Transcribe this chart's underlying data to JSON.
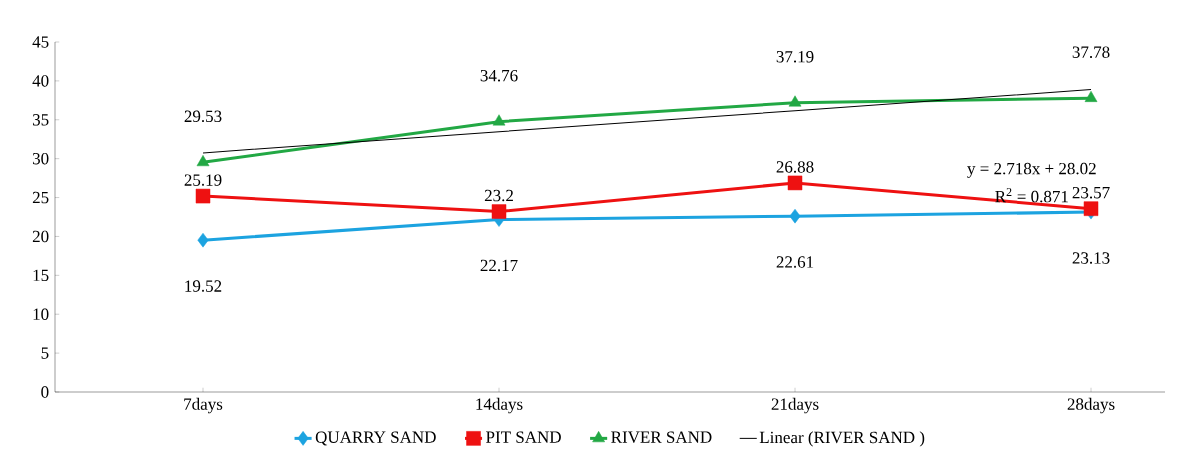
{
  "chart_data": {
    "type": "line",
    "categories": [
      "7days",
      "14days",
      "21days",
      "28days"
    ],
    "series": [
      {
        "name": "QUARRY SAND",
        "color": "#1ca3e0",
        "marker": "diamond",
        "values": [
          19.52,
          22.17,
          22.61,
          23.13
        ],
        "value_labels": [
          "19.52",
          "22.17",
          "22.61",
          "23.13"
        ]
      },
      {
        "name": "PIT SAND",
        "color": "#ee1111",
        "marker": "square",
        "values": [
          25.19,
          23.2,
          26.88,
          23.57
        ],
        "value_labels": [
          "25.19",
          "23.2",
          "26.88",
          "23.57"
        ]
      },
      {
        "name": "RIVER SAND",
        "color": "#22a844",
        "marker": "triangle",
        "values": [
          29.53,
          34.76,
          37.19,
          37.78
        ],
        "value_labels": [
          "29.53",
          "34.76",
          "37.19",
          "37.78"
        ]
      },
      {
        "name": "Linear (RIVER SAND )",
        "color": "#000000",
        "marker": "none",
        "values": [
          30.74,
          33.46,
          36.17,
          38.89
        ]
      }
    ],
    "ylim": [
      0,
      45
    ],
    "yticks": [
      0,
      5,
      10,
      15,
      20,
      25,
      30,
      35,
      40,
      45
    ],
    "legend": "bottom",
    "grid": false,
    "annotations": [
      "y = 2.718x + 28.02",
      "R$^{2}$ = 0.871"
    ]
  }
}
